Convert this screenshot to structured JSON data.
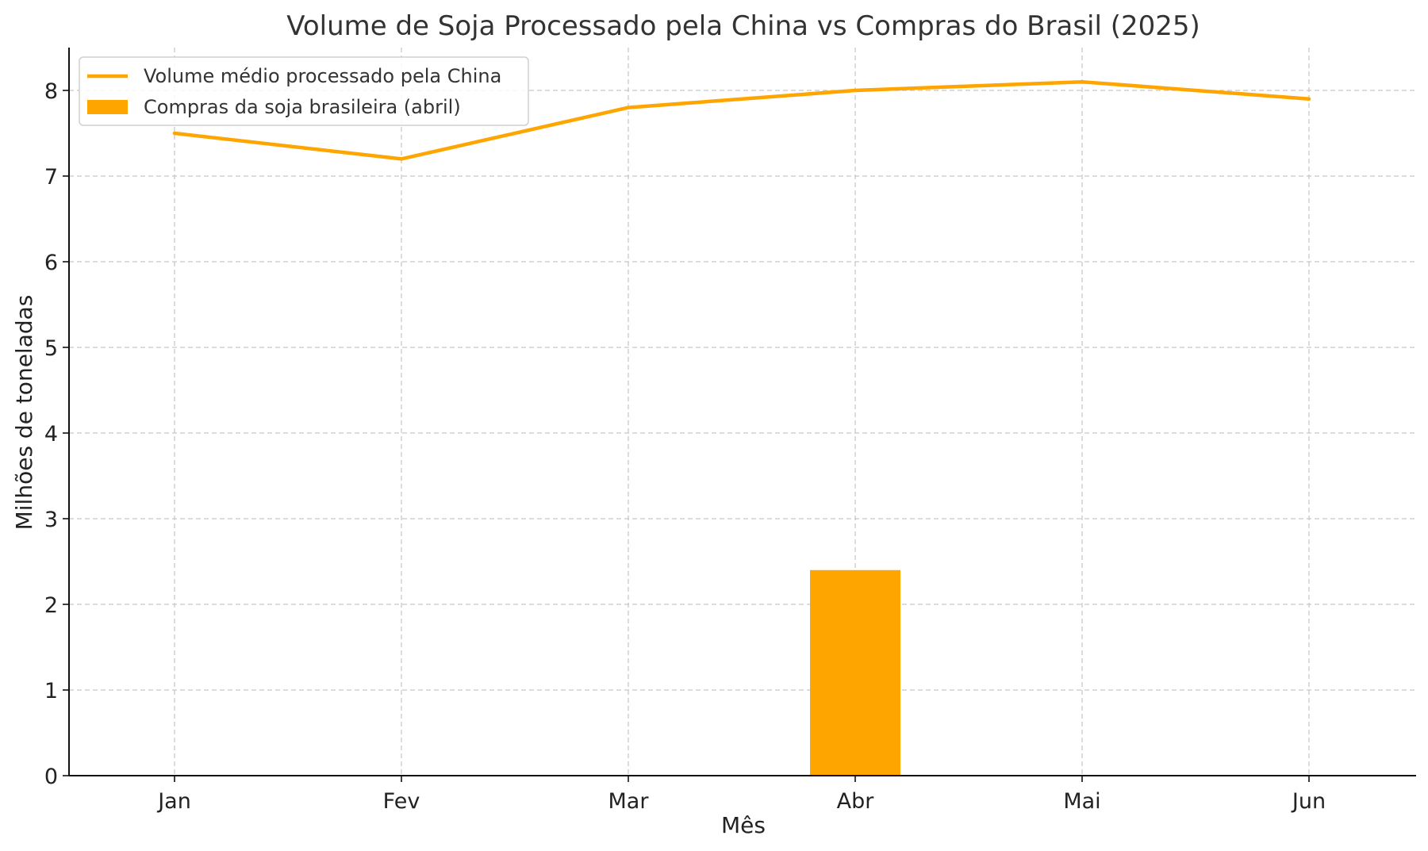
{
  "chart_data": {
    "type": "bar",
    "title": "Volume de Soja Processado pela China vs Compras do Brasil (2025)",
    "xlabel": "Mês",
    "ylabel": "Milhões de toneladas",
    "categories": [
      "Jan",
      "Fev",
      "Mar",
      "Abr",
      "Mai",
      "Jun"
    ],
    "ylim": [
      0,
      8.5
    ],
    "yticks": [
      0,
      1,
      2,
      3,
      4,
      5,
      6,
      7,
      8
    ],
    "grid": true,
    "legend_position": "top-left",
    "series": [
      {
        "name": "Volume médio processado pela China",
        "type": "line",
        "color": "#ffa500",
        "values": [
          7.5,
          7.2,
          7.8,
          8.0,
          8.1,
          7.9
        ]
      },
      {
        "name": "Compras da soja brasileira (abril)",
        "type": "bar",
        "color": "#ffa500",
        "values": [
          null,
          null,
          null,
          2.4,
          null,
          null
        ]
      }
    ]
  }
}
